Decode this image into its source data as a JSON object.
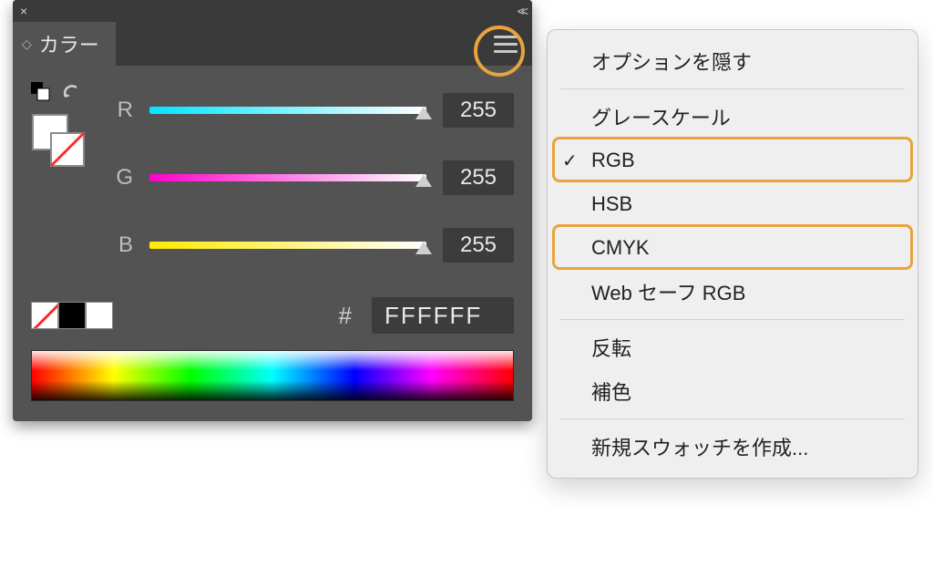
{
  "panel": {
    "tab_label": "カラー",
    "channels": [
      {
        "label": "R",
        "value": "255",
        "gradient_from": "#00e5ff",
        "gradient_to": "#ffffff"
      },
      {
        "label": "G",
        "value": "255",
        "gradient_from": "#ff00cc",
        "gradient_to": "#ffffff"
      },
      {
        "label": "B",
        "value": "255",
        "gradient_from": "#ffea00",
        "gradient_to": "#ffffff"
      }
    ],
    "hex_label": "#",
    "hex_value": "FFFFFF",
    "highlight_color": "#e8a33d",
    "panel_bg": "#535353",
    "input_bg": "#3c3c3c"
  },
  "menu": {
    "items": [
      {
        "label": "オプションを隠す",
        "checked": false,
        "sep_after": true,
        "highlighted": false
      },
      {
        "label": "グレースケール",
        "checked": false,
        "sep_after": false,
        "highlighted": false
      },
      {
        "label": "RGB",
        "checked": true,
        "sep_after": false,
        "highlighted": true
      },
      {
        "label": "HSB",
        "checked": false,
        "sep_after": false,
        "highlighted": false
      },
      {
        "label": "CMYK",
        "checked": false,
        "sep_after": false,
        "highlighted": true
      },
      {
        "label": "Web セーフ RGB",
        "checked": false,
        "sep_after": true,
        "highlighted": false
      },
      {
        "label": "反転",
        "checked": false,
        "sep_after": false,
        "highlighted": false
      },
      {
        "label": "補色",
        "checked": false,
        "sep_after": true,
        "highlighted": false
      },
      {
        "label": "新規スウォッチを作成...",
        "checked": false,
        "sep_after": false,
        "highlighted": false
      }
    ],
    "bg": "#efefef"
  }
}
